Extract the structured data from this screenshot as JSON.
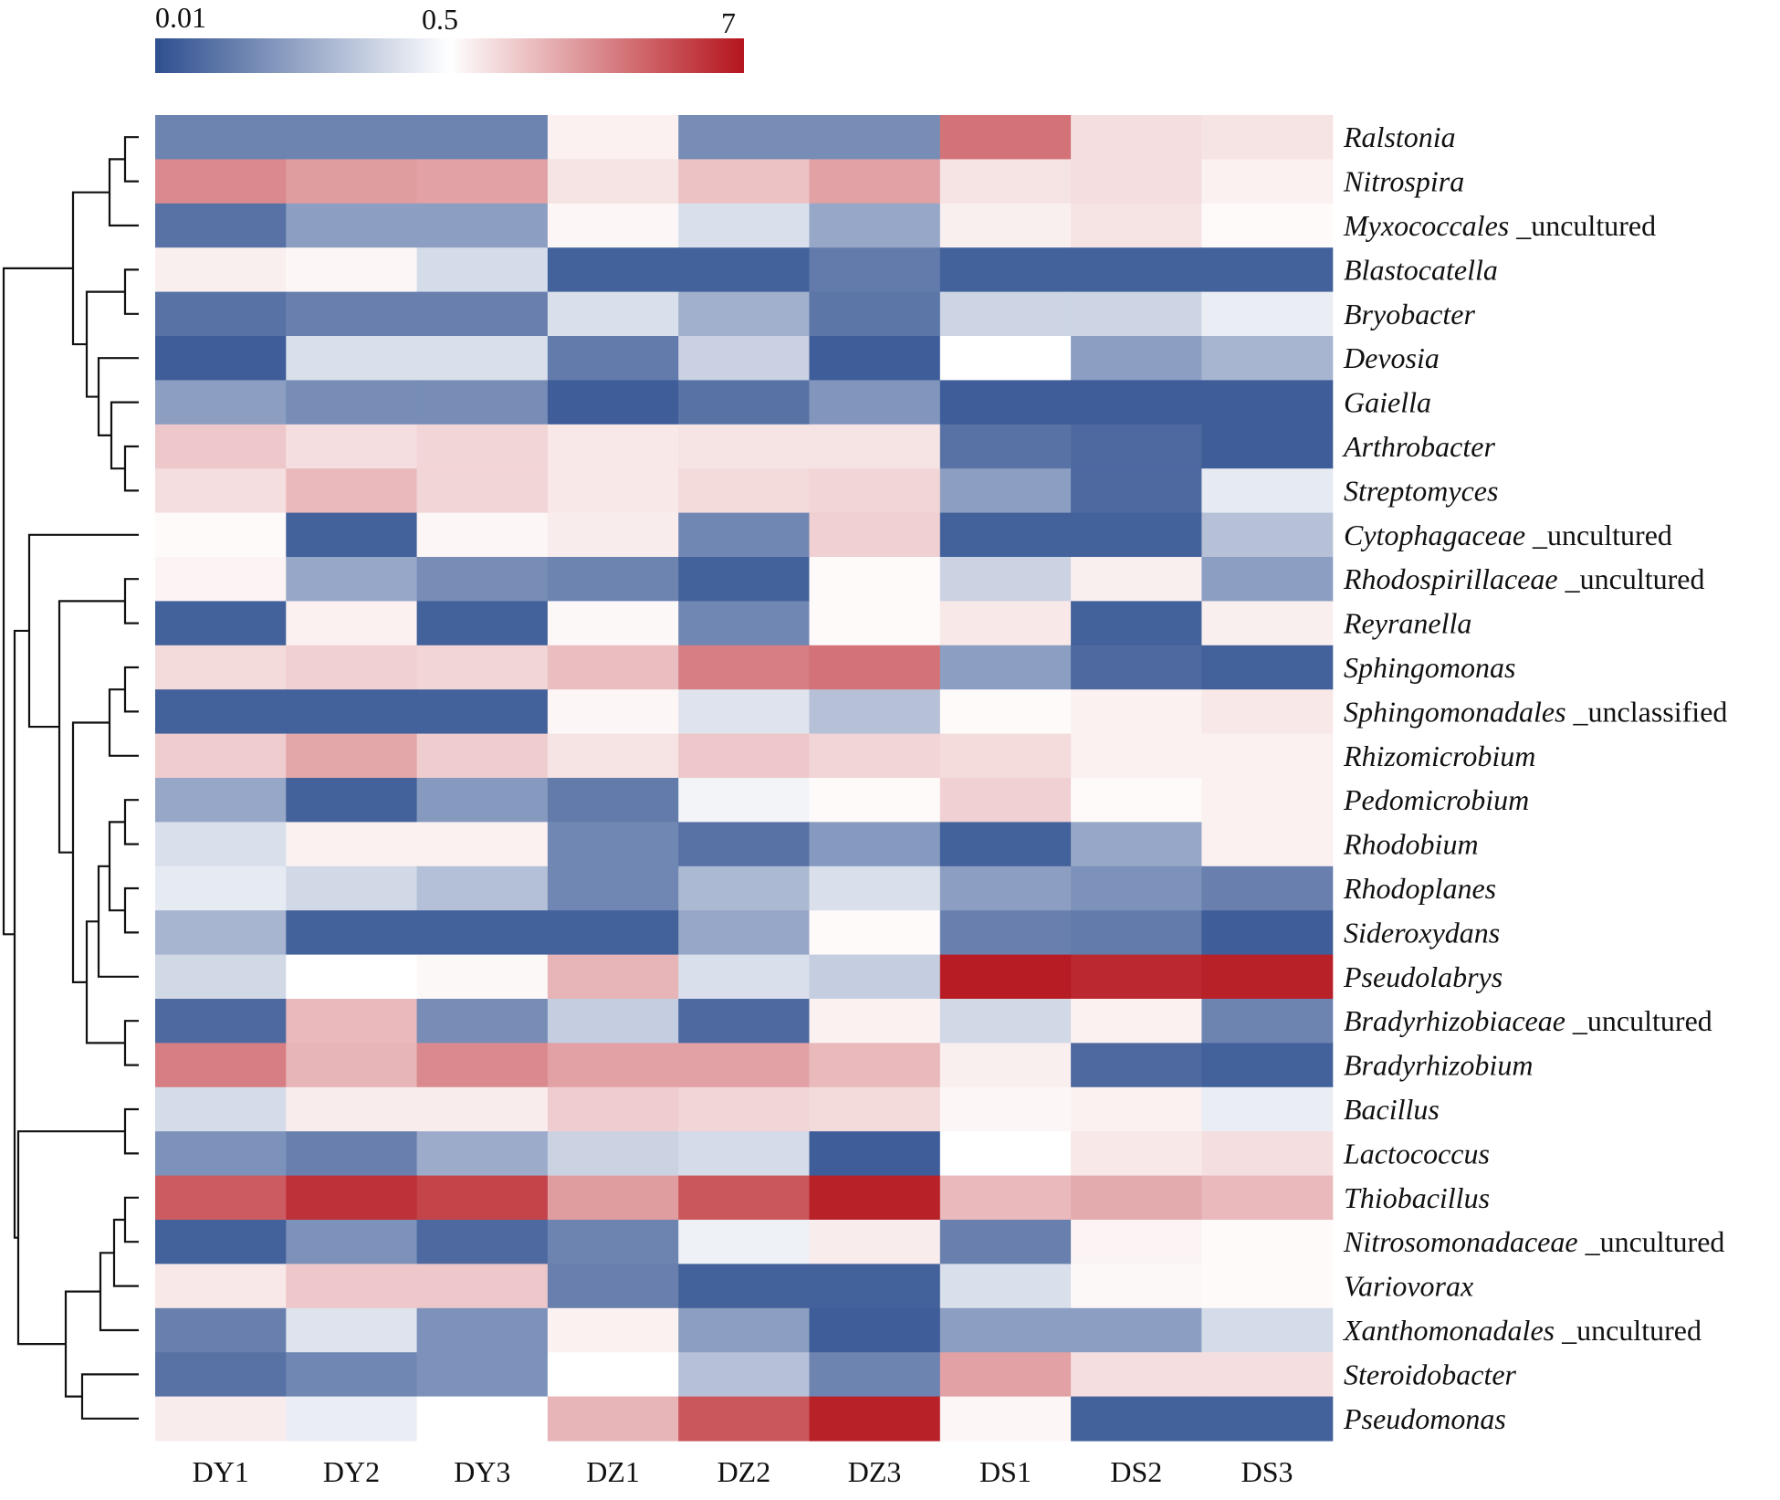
{
  "chart_data": {
    "type": "heatmap",
    "title": "",
    "color_scale": {
      "ticks": [
        "0.01",
        "0.5",
        "7"
      ],
      "low_color": "#2e4f8f",
      "mid_color": "#ffffff",
      "high_color": "#b5151d"
    },
    "columns": [
      "DY1",
      "DY2",
      "DY3",
      "DZ1",
      "DZ2",
      "DZ3",
      "DS1",
      "DS2",
      "DS3"
    ],
    "rows": [
      {
        "genus": "Ralstonia",
        "suffix": ""
      },
      {
        "genus": "Nitrospira",
        "suffix": ""
      },
      {
        "genus": "Myxococcales",
        "suffix": "_uncultured"
      },
      {
        "genus": "Blastocatella",
        "suffix": ""
      },
      {
        "genus": "Bryobacter",
        "suffix": ""
      },
      {
        "genus": "Devosia",
        "suffix": ""
      },
      {
        "genus": "Gaiella",
        "suffix": ""
      },
      {
        "genus": "Arthrobacter",
        "suffix": ""
      },
      {
        "genus": "Streptomyces",
        "suffix": ""
      },
      {
        "genus": "Cytophagaceae",
        "suffix": "_uncultured"
      },
      {
        "genus": "Rhodospirillaceae",
        "suffix": "_uncultured"
      },
      {
        "genus": "Reyranella",
        "suffix": ""
      },
      {
        "genus": "Sphingomonas",
        "suffix": ""
      },
      {
        "genus": "Sphingomonadales",
        "suffix": "_unclassified"
      },
      {
        "genus": "Rhizomicrobium",
        "suffix": ""
      },
      {
        "genus": "Pedomicrobium",
        "suffix": ""
      },
      {
        "genus": "Rhodobium",
        "suffix": ""
      },
      {
        "genus": "Rhodoplanes",
        "suffix": ""
      },
      {
        "genus": "Sideroxydans",
        "suffix": ""
      },
      {
        "genus": "Pseudolabrys",
        "suffix": ""
      },
      {
        "genus": "Bradyrhizobiaceae",
        "suffix": "_uncultured"
      },
      {
        "genus": "Bradyrhizobium",
        "suffix": ""
      },
      {
        "genus": "Bacillus",
        "suffix": ""
      },
      {
        "genus": "Lactococcus",
        "suffix": ""
      },
      {
        "genus": "Thiobacillus",
        "suffix": ""
      },
      {
        "genus": "Nitrosomonadaceae",
        "suffix": "_uncultured"
      },
      {
        "genus": "Variovorax",
        "suffix": ""
      },
      {
        "genus": "Xanthomonadales",
        "suffix": "_uncultured"
      },
      {
        "genus": "Steroidobacter",
        "suffix": ""
      },
      {
        "genus": "Pseudomonas",
        "suffix": ""
      }
    ],
    "values": [
      [
        -0.7,
        -0.7,
        -0.7,
        0.06,
        -0.65,
        -0.65,
        0.6,
        0.14,
        0.12
      ],
      [
        0.5,
        0.42,
        0.4,
        0.12,
        0.26,
        0.4,
        0.12,
        0.14,
        0.06
      ],
      [
        -0.8,
        -0.55,
        -0.55,
        0.04,
        -0.18,
        -0.5,
        0.07,
        0.12,
        0.02
      ],
      [
        0.07,
        0.04,
        -0.2,
        -0.9,
        -0.9,
        -0.75,
        -0.9,
        -0.9,
        -0.9
      ],
      [
        -0.8,
        -0.72,
        -0.72,
        -0.18,
        -0.45,
        -0.78,
        -0.24,
        -0.24,
        -0.1
      ],
      [
        -0.92,
        -0.18,
        -0.18,
        -0.75,
        -0.26,
        -0.92,
        0.0,
        -0.55,
        -0.42
      ],
      [
        -0.55,
        -0.65,
        -0.65,
        -0.92,
        -0.8,
        -0.6,
        -0.92,
        -0.92,
        -0.92
      ],
      [
        0.24,
        0.14,
        0.18,
        0.1,
        0.12,
        0.12,
        -0.8,
        -0.85,
        -0.92
      ],
      [
        0.14,
        0.3,
        0.18,
        0.1,
        0.16,
        0.18,
        -0.55,
        -0.85,
        -0.12
      ],
      [
        0.02,
        -0.9,
        0.04,
        0.08,
        -0.68,
        0.2,
        -0.9,
        -0.9,
        -0.35
      ],
      [
        0.05,
        -0.5,
        -0.65,
        -0.7,
        -0.9,
        0.02,
        -0.25,
        0.07,
        -0.55
      ],
      [
        -0.9,
        0.06,
        -0.9,
        0.03,
        -0.68,
        0.02,
        0.1,
        -0.9,
        0.07
      ],
      [
        0.16,
        0.2,
        0.18,
        0.28,
        0.55,
        0.6,
        -0.55,
        -0.85,
        -0.9
      ],
      [
        -0.9,
        -0.9,
        -0.9,
        0.04,
        -0.16,
        -0.35,
        0.02,
        0.06,
        0.1
      ],
      [
        0.22,
        0.38,
        0.22,
        0.12,
        0.24,
        0.18,
        0.15,
        0.06,
        0.06
      ],
      [
        -0.5,
        -0.9,
        -0.58,
        -0.75,
        -0.06,
        0.02,
        0.2,
        0.02,
        0.06
      ],
      [
        -0.18,
        0.06,
        0.06,
        -0.68,
        -0.8,
        -0.58,
        -0.9,
        -0.5,
        0.06
      ],
      [
        -0.12,
        -0.22,
        -0.36,
        -0.68,
        -0.4,
        -0.18,
        -0.55,
        -0.62,
        -0.72
      ],
      [
        -0.42,
        -0.9,
        -0.9,
        -0.9,
        -0.5,
        0.02,
        -0.72,
        -0.75,
        -0.92
      ],
      [
        -0.22,
        0.0,
        0.03,
        0.32,
        -0.18,
        -0.28,
        0.97,
        0.92,
        0.95
      ],
      [
        -0.85,
        0.3,
        -0.65,
        -0.28,
        -0.85,
        0.06,
        -0.22,
        0.06,
        -0.7
      ],
      [
        0.55,
        0.32,
        0.5,
        0.4,
        0.4,
        0.3,
        0.07,
        -0.85,
        -0.9
      ],
      [
        -0.2,
        0.08,
        0.08,
        0.22,
        0.18,
        0.16,
        0.04,
        0.06,
        -0.1
      ],
      [
        -0.62,
        -0.72,
        -0.48,
        -0.25,
        -0.2,
        -0.92,
        0.0,
        0.1,
        0.14
      ],
      [
        0.7,
        0.88,
        0.8,
        0.42,
        0.72,
        0.95,
        0.3,
        0.36,
        0.3
      ],
      [
        -0.9,
        -0.62,
        -0.85,
        -0.7,
        -0.08,
        0.08,
        -0.72,
        0.05,
        0.02
      ],
      [
        0.1,
        0.24,
        0.24,
        -0.72,
        -0.9,
        -0.9,
        -0.18,
        0.03,
        0.02
      ],
      [
        -0.72,
        -0.16,
        -0.62,
        0.06,
        -0.55,
        -0.92,
        -0.55,
        -0.55,
        -0.2
      ],
      [
        -0.8,
        -0.68,
        -0.62,
        0.0,
        -0.35,
        -0.7,
        0.4,
        0.14,
        0.14
      ],
      [
        0.08,
        -0.1,
        0.0,
        0.32,
        0.72,
        0.95,
        0.04,
        -0.9,
        -0.9
      ]
    ],
    "value_note": "relative abundance on a diverging scale: -1 = 0.01 (blue), 0 = 0.5 (white), 1 = 7 (red)",
    "dendrogram": "row clustering tree shown on the left"
  }
}
